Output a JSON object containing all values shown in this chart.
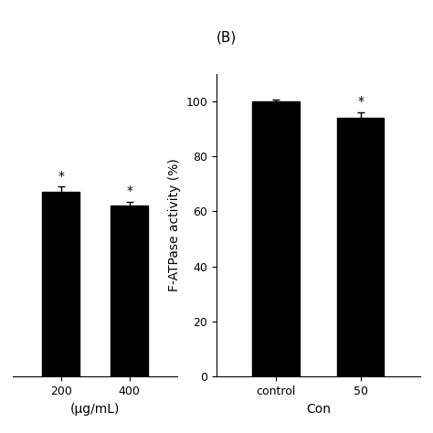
{
  "panel_A": {
    "categories": [
      "200",
      "400"
    ],
    "values": [
      67,
      62
    ],
    "errors": [
      2.0,
      1.5
    ],
    "xlabel": "(μg/mL)",
    "ylim": [
      0,
      110
    ],
    "bar_color": "#000000",
    "bar_width": 0.55
  },
  "panel_B": {
    "label": "(B)",
    "categories": [
      "control",
      "50"
    ],
    "values": [
      100,
      94
    ],
    "errors": [
      0.5,
      2.0
    ],
    "xlabel": "Con",
    "ylabel": "F-ATPase activity (%)",
    "ylim": [
      0,
      110
    ],
    "yticks": [
      0,
      20,
      40,
      60,
      80,
      100
    ],
    "bar_color": "#000000",
    "bar_width": 0.55
  },
  "background_color": "#ffffff",
  "font_size": 10,
  "tick_font_size": 9,
  "label_fontsize": 11
}
